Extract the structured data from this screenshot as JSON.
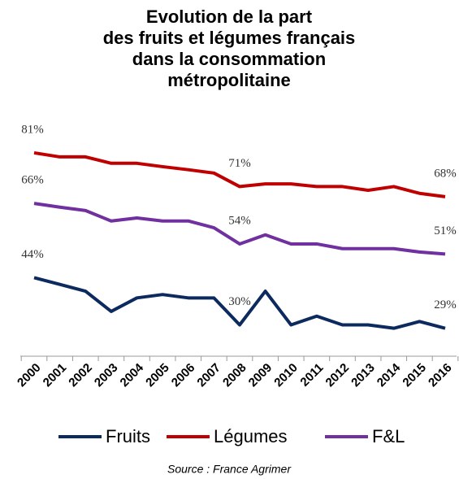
{
  "chart_data": {
    "type": "line",
    "title": [
      "Evolution de la part",
      "des fruits et légumes français",
      "dans la consommation",
      "métropolitaine"
    ],
    "source": "Source : France Agrimer",
    "categories": [
      "2000",
      "2001",
      "2002",
      "2003",
      "2004",
      "2005",
      "2006",
      "2007",
      "2008",
      "2009",
      "2010",
      "2011",
      "2012",
      "2013",
      "2014",
      "2015",
      "2016"
    ],
    "ylim": [
      20,
      90
    ],
    "series": [
      {
        "name": "Fruits",
        "color": "#0d2a5e",
        "values": [
          44,
          42,
          40,
          34,
          38,
          39,
          38,
          38,
          30,
          40,
          30,
          32.6,
          30,
          30,
          29,
          31,
          29
        ],
        "value_labels": [
          "44%",
          null,
          null,
          null,
          null,
          null,
          null,
          null,
          "30%",
          null,
          null,
          null,
          null,
          null,
          null,
          null,
          "29%"
        ]
      },
      {
        "name": "Légumes",
        "color": "#c00000",
        "values": [
          81,
          79.8,
          79.8,
          77.9,
          77.9,
          76.9,
          76,
          75,
          71,
          71.8,
          71.8,
          71,
          71,
          69.9,
          71,
          69,
          68
        ],
        "value_labels": [
          "81%",
          null,
          null,
          null,
          null,
          null,
          null,
          null,
          "71%",
          null,
          null,
          null,
          null,
          null,
          null,
          null,
          "68%"
        ]
      },
      {
        "name": "F&L",
        "color": "#7030a0",
        "values": [
          66,
          64.9,
          63.9,
          60.8,
          61.7,
          60.8,
          60.8,
          58.8,
          54,
          56.7,
          54,
          54,
          52.6,
          52.6,
          52.6,
          51.6,
          51
        ],
        "value_labels": [
          "66%",
          null,
          null,
          null,
          null,
          null,
          null,
          null,
          "54%",
          null,
          null,
          null,
          null,
          null,
          null,
          null,
          "51%"
        ]
      }
    ]
  }
}
